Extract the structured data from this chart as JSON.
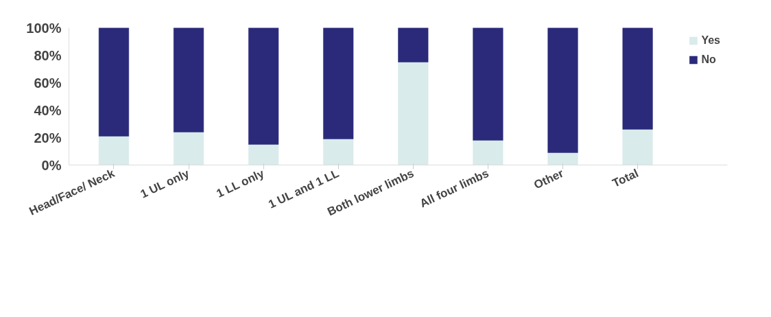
{
  "chart_data": {
    "type": "bar",
    "stacked": true,
    "categories": [
      "Head/Face/ Neck",
      "1 UL only",
      "1 LL only",
      "1 UL and 1 LL",
      "Both lower limbs",
      "All four limbs",
      "Other",
      "Total"
    ],
    "series": [
      {
        "name": "Yes",
        "color": "#d9ebea",
        "values": [
          21,
          24,
          15,
          19,
          75,
          18,
          9,
          26
        ]
      },
      {
        "name": "No",
        "color": "#2b2a7a",
        "values": [
          79,
          76,
          85,
          81,
          25,
          82,
          91,
          74
        ]
      }
    ],
    "ylim": [
      0,
      100
    ],
    "yticks": [
      {
        "value": 0,
        "label": "0%"
      },
      {
        "value": 20,
        "label": "20%"
      },
      {
        "value": 40,
        "label": "40%"
      },
      {
        "value": 60,
        "label": "60%"
      },
      {
        "value": 80,
        "label": "80%"
      },
      {
        "value": 100,
        "label": "100%"
      }
    ],
    "grid": false,
    "legend": "top right"
  }
}
